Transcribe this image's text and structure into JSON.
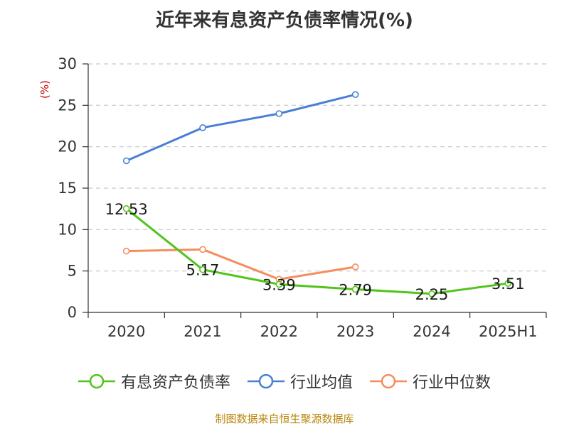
{
  "page": {
    "title": "近年来有息资产负债率情况(%)",
    "source": "制图数据来自恒生聚源数据库"
  },
  "chart_data": {
    "type": "line",
    "title": "近年来有息资产负债率情况(%)",
    "ylabel": "(%)",
    "xlabel": "",
    "categories": [
      "2020",
      "2021",
      "2022",
      "2023",
      "2024",
      "2025H1"
    ],
    "ylim": [
      0,
      30
    ],
    "yticks": [
      0,
      5,
      10,
      15,
      20,
      25,
      30
    ],
    "grid": true,
    "legend_position": "bottom",
    "series": [
      {
        "name": "有息资产负债率",
        "color": "#52c41a",
        "values": [
          12.53,
          5.17,
          3.39,
          2.79,
          2.25,
          3.51
        ],
        "labels": [
          "12.53",
          "5.17",
          "3.39",
          "2.79",
          "2.25",
          "3.51"
        ]
      },
      {
        "name": "行业均值",
        "color": "#4a7fd4",
        "values": [
          18.3,
          22.3,
          24.0,
          26.3,
          null,
          null
        ]
      },
      {
        "name": "行业中位数",
        "color": "#f58d5d",
        "values": [
          7.4,
          7.6,
          4.0,
          5.5,
          null,
          null
        ]
      }
    ]
  }
}
